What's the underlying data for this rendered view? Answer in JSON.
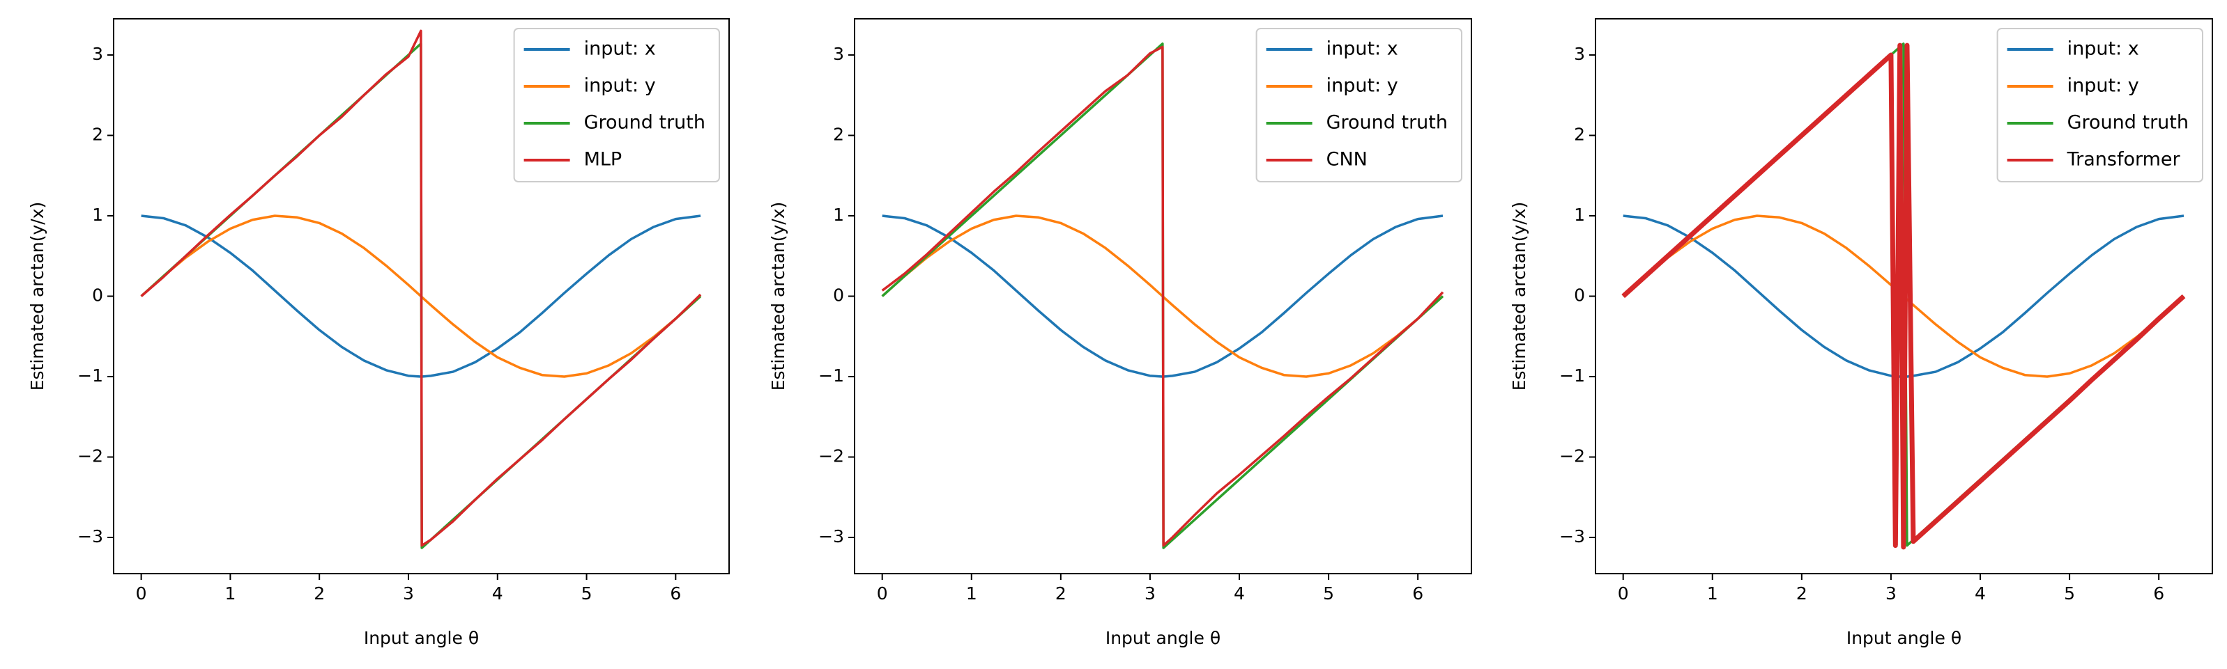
{
  "chart_data": [
    {
      "type": "line",
      "xlabel": "Input angle θ",
      "ylabel": "Estimated arctan(y/x)",
      "legend": "upper right",
      "xlim": [
        -0.31,
        6.6
      ],
      "ylim": [
        -3.45,
        3.45
      ],
      "xticks": [
        0,
        1,
        2,
        3,
        4,
        5,
        6
      ],
      "yticks": [
        {
          "value": -3,
          "label": "−3"
        },
        {
          "value": -2,
          "label": "−2"
        },
        {
          "value": -1,
          "label": "−1"
        },
        0,
        1,
        2,
        3
      ],
      "x": [
        0,
        0.25,
        0.5,
        0.75,
        1.0,
        1.25,
        1.5,
        1.75,
        2.0,
        2.25,
        2.5,
        2.75,
        3.0,
        3.14,
        3.15,
        3.25,
        3.5,
        3.75,
        4.0,
        4.25,
        4.5,
        4.75,
        5.0,
        5.25,
        5.5,
        5.75,
        6.0,
        6.28
      ],
      "series": [
        {
          "name": "input: x",
          "color": "#1f77b4",
          "values": [
            1.0,
            0.97,
            0.88,
            0.73,
            0.54,
            0.32,
            0.07,
            -0.18,
            -0.42,
            -0.63,
            -0.8,
            -0.92,
            -0.99,
            -1.0,
            -1.0,
            -0.99,
            -0.94,
            -0.82,
            -0.65,
            -0.45,
            -0.21,
            0.04,
            0.28,
            0.51,
            0.71,
            0.86,
            0.96,
            1.0
          ]
        },
        {
          "name": "input: y",
          "color": "#ff7f0e",
          "values": [
            0.0,
            0.25,
            0.48,
            0.68,
            0.84,
            0.95,
            1.0,
            0.98,
            0.91,
            0.78,
            0.6,
            0.38,
            0.14,
            0.0,
            -0.01,
            -0.11,
            -0.35,
            -0.57,
            -0.76,
            -0.89,
            -0.98,
            -1.0,
            -0.96,
            -0.86,
            -0.71,
            -0.51,
            -0.28,
            0.0
          ]
        },
        {
          "name": "Ground truth",
          "color": "#2ca02c",
          "values": [
            0.0,
            0.25,
            0.5,
            0.75,
            1.0,
            1.25,
            1.5,
            1.75,
            2.0,
            2.25,
            2.5,
            2.75,
            3.0,
            3.14,
            -3.13,
            -3.03,
            -2.78,
            -2.53,
            -2.28,
            -2.03,
            -1.78,
            -1.53,
            -1.28,
            -1.03,
            -0.78,
            -0.53,
            -0.28,
            0.0
          ]
        },
        {
          "name": "MLP",
          "color": "#d62728",
          "values": [
            0.0,
            0.24,
            0.5,
            0.76,
            1.01,
            1.25,
            1.5,
            1.74,
            2.0,
            2.23,
            2.5,
            2.76,
            2.98,
            3.3,
            -3.1,
            -3.03,
            -2.8,
            -2.53,
            -2.27,
            -2.03,
            -1.79,
            -1.53,
            -1.28,
            -1.03,
            -0.79,
            -0.53,
            -0.28,
            0.02
          ]
        }
      ]
    },
    {
      "type": "line",
      "xlabel": "Input angle θ",
      "ylabel": "Estimated arctan(y/x)",
      "legend": "upper right",
      "xlim": [
        -0.31,
        6.6
      ],
      "ylim": [
        -3.45,
        3.45
      ],
      "xticks": [
        0,
        1,
        2,
        3,
        4,
        5,
        6
      ],
      "yticks": [
        {
          "value": -3,
          "label": "−3"
        },
        {
          "value": -2,
          "label": "−2"
        },
        {
          "value": -1,
          "label": "−1"
        },
        0,
        1,
        2,
        3
      ],
      "x": [
        0,
        0.25,
        0.5,
        0.75,
        1.0,
        1.25,
        1.5,
        1.75,
        2.0,
        2.25,
        2.5,
        2.75,
        3.0,
        3.14,
        3.15,
        3.25,
        3.5,
        3.75,
        4.0,
        4.25,
        4.5,
        4.75,
        5.0,
        5.25,
        5.5,
        5.75,
        6.0,
        6.28
      ],
      "series": [
        {
          "name": "input: x",
          "color": "#1f77b4",
          "values": [
            1.0,
            0.97,
            0.88,
            0.73,
            0.54,
            0.32,
            0.07,
            -0.18,
            -0.42,
            -0.63,
            -0.8,
            -0.92,
            -0.99,
            -1.0,
            -1.0,
            -0.99,
            -0.94,
            -0.82,
            -0.65,
            -0.45,
            -0.21,
            0.04,
            0.28,
            0.51,
            0.71,
            0.86,
            0.96,
            1.0
          ]
        },
        {
          "name": "input: y",
          "color": "#ff7f0e",
          "values": [
            0.0,
            0.25,
            0.48,
            0.68,
            0.84,
            0.95,
            1.0,
            0.98,
            0.91,
            0.78,
            0.6,
            0.38,
            0.14,
            0.0,
            -0.01,
            -0.11,
            -0.35,
            -0.57,
            -0.76,
            -0.89,
            -0.98,
            -1.0,
            -0.96,
            -0.86,
            -0.71,
            -0.51,
            -0.28,
            0.0
          ]
        },
        {
          "name": "Ground truth",
          "color": "#2ca02c",
          "values": [
            0.0,
            0.25,
            0.5,
            0.75,
            1.0,
            1.25,
            1.5,
            1.75,
            2.0,
            2.25,
            2.5,
            2.75,
            3.0,
            3.14,
            -3.13,
            -3.03,
            -2.78,
            -2.53,
            -2.28,
            -2.03,
            -1.78,
            -1.53,
            -1.28,
            -1.03,
            -0.78,
            -0.53,
            -0.28,
            0.0
          ]
        },
        {
          "name": "CNN",
          "color": "#d62728",
          "values": [
            0.07,
            0.28,
            0.52,
            0.78,
            1.04,
            1.3,
            1.54,
            1.8,
            2.05,
            2.3,
            2.55,
            2.75,
            3.02,
            3.1,
            -3.1,
            -3.0,
            -2.72,
            -2.45,
            -2.22,
            -1.98,
            -1.74,
            -1.49,
            -1.25,
            -1.02,
            -0.77,
            -0.52,
            -0.28,
            0.05
          ]
        }
      ]
    },
    {
      "type": "line",
      "xlabel": "Input angle θ",
      "ylabel": "Estimated arctan(y/x)",
      "legend": "upper right",
      "xlim": [
        -0.31,
        6.6
      ],
      "ylim": [
        -3.45,
        3.45
      ],
      "xticks": [
        0,
        1,
        2,
        3,
        4,
        5,
        6
      ],
      "yticks": [
        {
          "value": -3,
          "label": "−3"
        },
        {
          "value": -2,
          "label": "−2"
        },
        {
          "value": -1,
          "label": "−1"
        },
        0,
        1,
        2,
        3
      ],
      "x": [
        0,
        0.25,
        0.5,
        0.75,
        1.0,
        1.25,
        1.5,
        1.75,
        2.0,
        2.25,
        2.5,
        2.75,
        3.0,
        3.05,
        3.1,
        3.14,
        3.18,
        3.25,
        3.5,
        3.75,
        4.0,
        4.25,
        4.5,
        4.75,
        5.0,
        5.25,
        5.5,
        5.75,
        6.0,
        6.28
      ],
      "series": [
        {
          "name": "input: x",
          "color": "#1f77b4",
          "values": [
            1.0,
            0.97,
            0.88,
            0.73,
            0.54,
            0.32,
            0.07,
            -0.18,
            -0.42,
            -0.63,
            -0.8,
            -0.92,
            -0.99,
            -1.0,
            -1.0,
            -1.0,
            -1.0,
            -0.99,
            -0.94,
            -0.82,
            -0.65,
            -0.45,
            -0.21,
            0.04,
            0.28,
            0.51,
            0.71,
            0.86,
            0.96,
            1.0
          ]
        },
        {
          "name": "input: y",
          "color": "#ff7f0e",
          "values": [
            0.0,
            0.25,
            0.48,
            0.68,
            0.84,
            0.95,
            1.0,
            0.98,
            0.91,
            0.78,
            0.6,
            0.38,
            0.14,
            0.09,
            0.04,
            0.0,
            -0.04,
            -0.11,
            -0.35,
            -0.57,
            -0.76,
            -0.89,
            -0.98,
            -1.0,
            -0.96,
            -0.86,
            -0.71,
            -0.51,
            -0.28,
            0.0
          ]
        },
        {
          "name": "Ground truth",
          "color": "#2ca02c",
          "values": [
            0.0,
            0.25,
            0.5,
            0.75,
            1.0,
            1.25,
            1.5,
            1.75,
            2.0,
            2.25,
            2.5,
            2.75,
            3.0,
            3.05,
            3.1,
            3.14,
            -3.1,
            -3.03,
            -2.78,
            -2.53,
            -2.28,
            -2.03,
            -1.78,
            -1.53,
            -1.28,
            -1.03,
            -0.78,
            -0.53,
            -0.28,
            0.0
          ]
        },
        {
          "name": "Transformer",
          "color": "#d62728",
          "values": [
            0.0,
            0.25,
            0.5,
            0.75,
            1.0,
            1.25,
            1.5,
            1.75,
            2.0,
            2.25,
            2.5,
            2.75,
            3.0,
            -3.1,
            3.12,
            -3.12,
            3.12,
            -3.05,
            -2.8,
            -2.55,
            -2.3,
            -2.05,
            -1.8,
            -1.55,
            -1.3,
            -1.04,
            -0.79,
            -0.54,
            -0.28,
            0.0
          ]
        }
      ]
    }
  ]
}
